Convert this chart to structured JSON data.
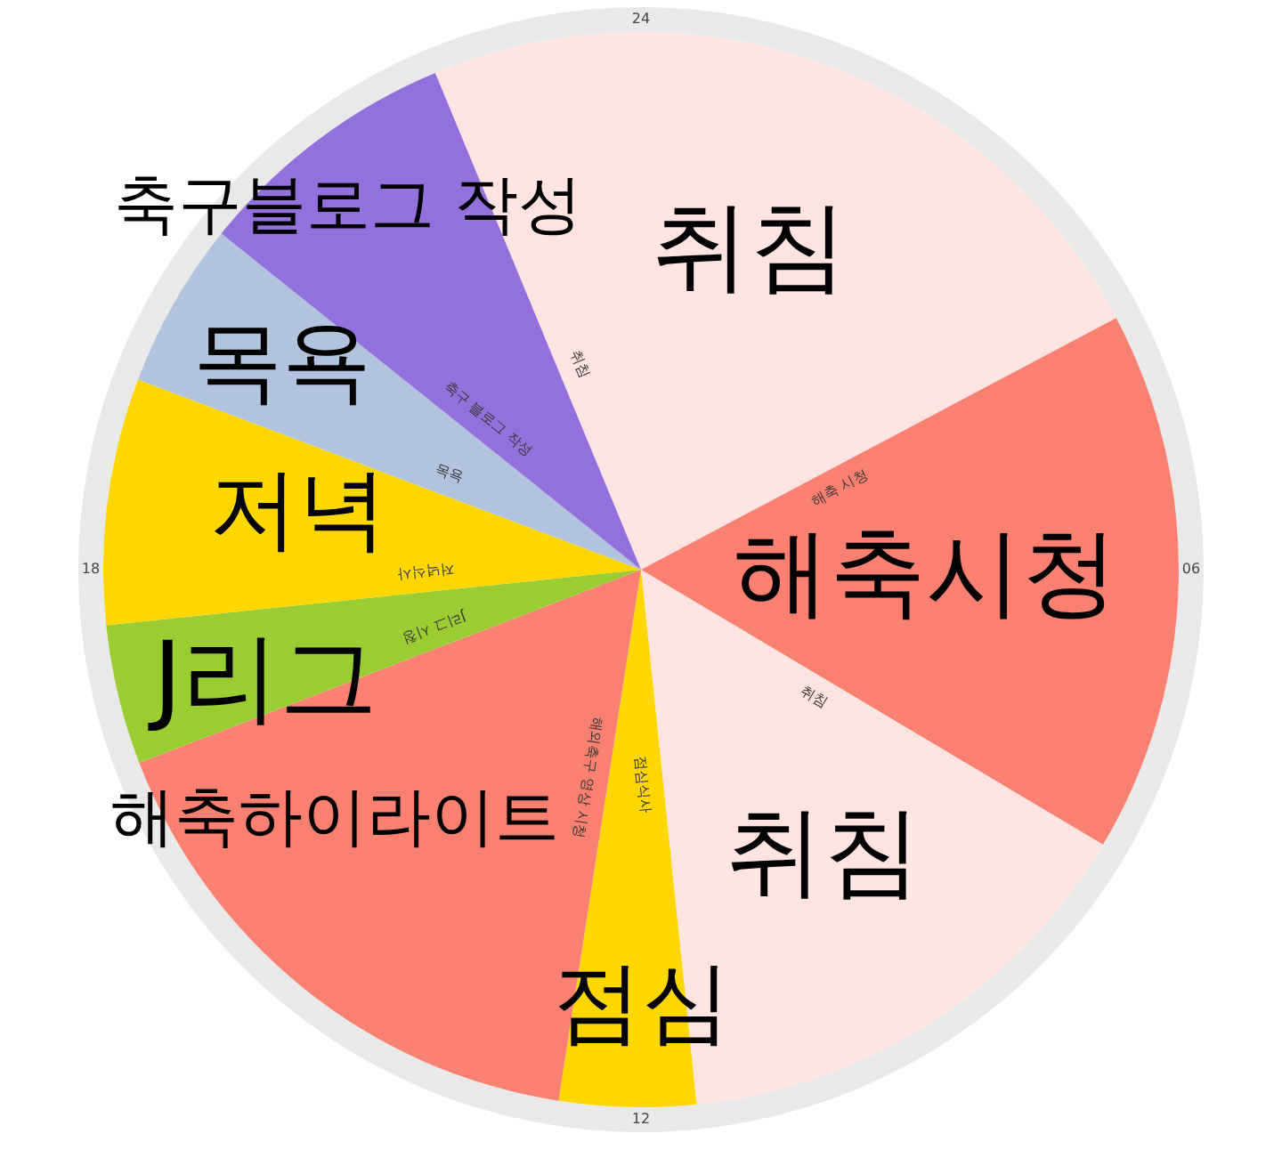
{
  "chart_data": {
    "type": "pie",
    "categories": [
      "취침",
      "해축 시청",
      "취침",
      "점심식사",
      "해외축구 영상 시청",
      "J리그 시청",
      "저녁식사",
      "목욕",
      "축구 블로그 작성"
    ],
    "values": [
      23.5,
      16.3,
      14.8,
      4.1,
      16.7,
      4.2,
      7.4,
      5.0,
      8.0
    ],
    "colors": [
      "#ffe4e1",
      "#fa8072",
      "#ffe4e1",
      "#ffd700",
      "#fa8072",
      "#9acd32",
      "#ffd700",
      "#b0c4de",
      "#9370db"
    ],
    "annotations": [
      "취침",
      "해축시청",
      "취침",
      "점심",
      "해축하이라이트",
      "J리그",
      "저녁",
      "목욕",
      "축구블로그 작성",
      "24",
      "06",
      "12",
      "18"
    ]
  }
}
